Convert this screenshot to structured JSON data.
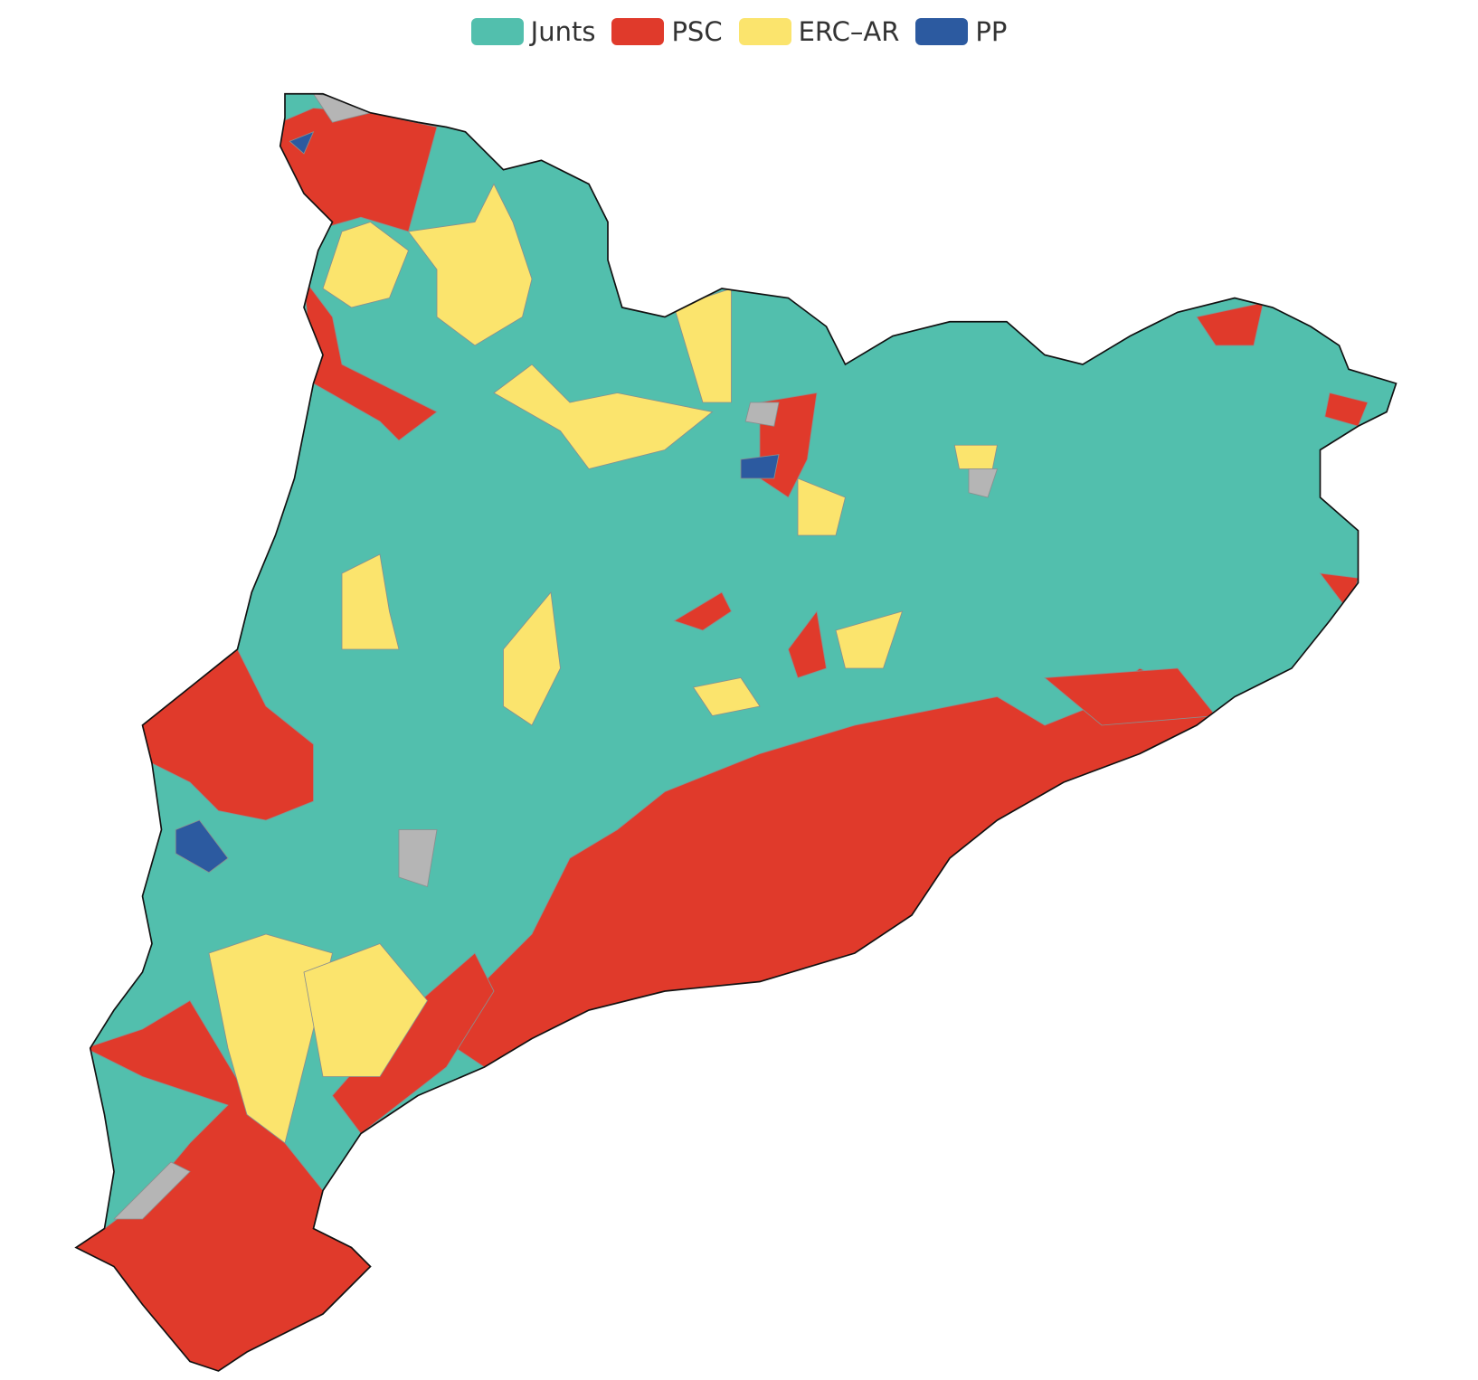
{
  "legend": {
    "items": [
      {
        "label": "Junts",
        "color": "#52bfad"
      },
      {
        "label": "PSC",
        "color": "#e03a2b"
      },
      {
        "label": "ERC–AR",
        "color": "#fbe46d"
      },
      {
        "label": "PP",
        "color": "#2c5aa0"
      }
    ]
  }
}
